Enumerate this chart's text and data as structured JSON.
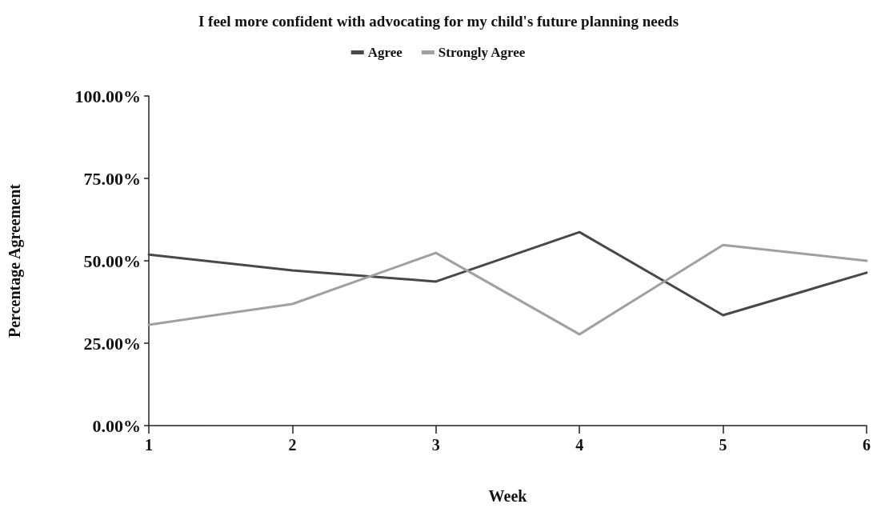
{
  "chart_data": {
    "type": "line",
    "title": "I feel more confident with advocating for my child's future planning needs",
    "xlabel": "Week",
    "ylabel": "Percentage Agreement",
    "x": [
      1,
      2,
      3,
      4,
      5,
      6
    ],
    "series": [
      {
        "name": "Agree",
        "color": "#48484a",
        "values": [
          51.9,
          47.1,
          43.7,
          58.7,
          33.5,
          46.4
        ]
      },
      {
        "name": "Strongly Agree",
        "color": "#a0a0a0",
        "values": [
          30.6,
          36.9,
          52.4,
          27.7,
          54.8,
          50.0
        ]
      }
    ],
    "xlim": [
      1,
      6
    ],
    "xticks": [
      1,
      2,
      3,
      4,
      5,
      6
    ],
    "ylim": [
      0,
      100
    ],
    "yticks": [
      {
        "value": 0,
        "label": "0.00%"
      },
      {
        "value": 25,
        "label": "25.00%"
      },
      {
        "value": 50,
        "label": "50.00%"
      },
      {
        "value": 75,
        "label": "75.00%"
      },
      {
        "value": 100,
        "label": "100.00%"
      }
    ],
    "grid": false,
    "legend": "top",
    "marker": "none",
    "line_style": "solid"
  }
}
